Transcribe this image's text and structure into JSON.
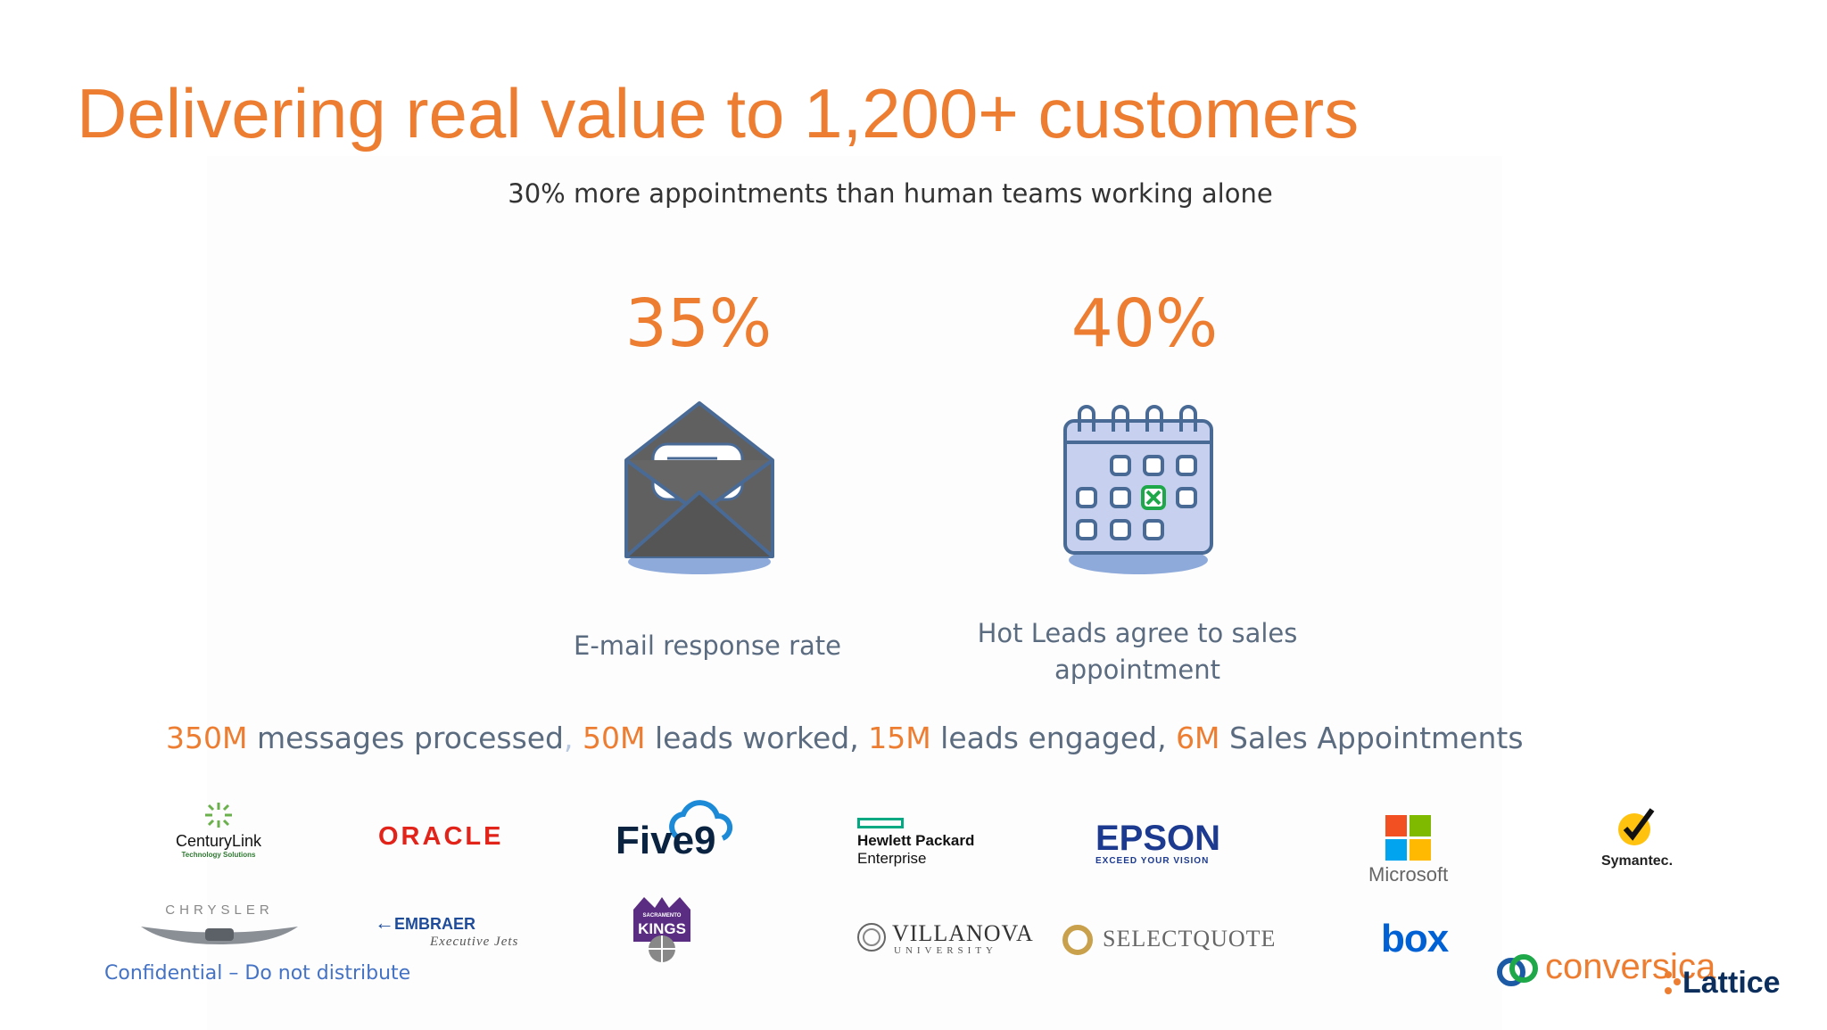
{
  "slide": {
    "title": "Delivering real value to 1,200+ customers",
    "subtitle": "30% more appointments than human teams working alone",
    "accent_color": "#ED7D31",
    "text_color": "#5b6b80"
  },
  "stats": [
    {
      "value": "35%",
      "label": "E-mail response rate",
      "icon": "envelope-icon"
    },
    {
      "value": "40%",
      "label_line1": "Hot Leads agree to sales",
      "label_line2": "appointment",
      "icon": "calendar-icon"
    }
  ],
  "summary": {
    "n1": "350M",
    "t1": " messages processed",
    "c1": ",",
    "n2": " 50M",
    "t2": " leads worked,  ",
    "n3": "15M",
    "t3": " leads engaged, ",
    "n4": "6M",
    "t4": " Sales Appointments"
  },
  "logos": {
    "centurylink": {
      "name": "CenturyLink",
      "tagline": "Technology Solutions"
    },
    "oracle": {
      "name": "ORACLE"
    },
    "five9": {
      "name": "Five9"
    },
    "hpe": {
      "line1": "Hewlett Packard",
      "line2": "Enterprise"
    },
    "epson": {
      "name": "EPSON",
      "tagline": "EXCEED YOUR VISION"
    },
    "microsoft": {
      "name": "Microsoft"
    },
    "symantec": {
      "name": "Symantec."
    },
    "chrysler": {
      "name": "CHRYSLER"
    },
    "embraer": {
      "name": "EMBRAER",
      "tagline": "Executive Jets"
    },
    "kings": {
      "line1": "SACRAMENTO",
      "line2": "KINGS"
    },
    "villanova": {
      "name": "VILLANOVA",
      "tagline": "UNIVERSITY"
    },
    "selectquote": {
      "name": "SELECTQUOTE"
    },
    "box": {
      "name": "box"
    },
    "conversica": {
      "name": "conversica"
    },
    "lattice": {
      "name": "Lattice"
    }
  },
  "footer": {
    "confidential": "Confidential – Do not distribute"
  }
}
